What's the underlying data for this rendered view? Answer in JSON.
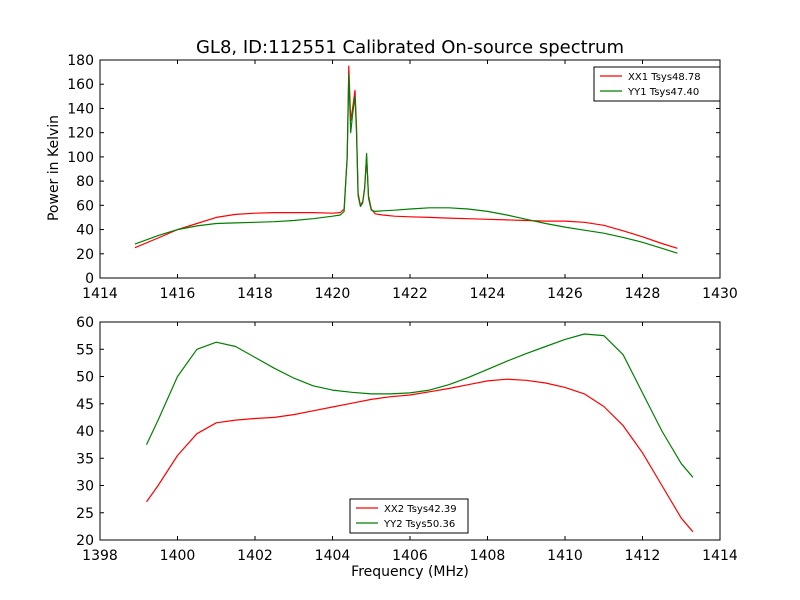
{
  "chart_data": [
    {
      "type": "line",
      "title": "GL8, ID:112551 Calibrated On-source spectrum",
      "xlabel": "",
      "ylabel": "Power in Kelvin",
      "xlim": [
        1414,
        1430
      ],
      "ylim": [
        0,
        180
      ],
      "xticks": [
        1414,
        1416,
        1418,
        1420,
        1422,
        1424,
        1426,
        1428,
        1430
      ],
      "yticks": [
        0,
        20,
        40,
        60,
        80,
        100,
        120,
        140,
        160,
        180
      ],
      "grid": false,
      "legend_position": "upper right",
      "series": [
        {
          "name": "XX1 Tsys48.78",
          "color": "#ff0000",
          "x": [
            1414.9,
            1415.5,
            1416.0,
            1416.5,
            1417.0,
            1417.5,
            1418.0,
            1418.5,
            1419.0,
            1419.5,
            1420.0,
            1420.2,
            1420.3,
            1420.38,
            1420.42,
            1420.47,
            1420.52,
            1420.58,
            1420.62,
            1420.66,
            1420.72,
            1420.78,
            1420.83,
            1420.88,
            1420.93,
            1421.0,
            1421.1,
            1421.3,
            1421.6,
            1422.0,
            1422.5,
            1423.0,
            1423.5,
            1424.0,
            1424.5,
            1425.0,
            1425.5,
            1426.0,
            1426.5,
            1427.0,
            1427.5,
            1428.0,
            1428.5,
            1428.9
          ],
          "y": [
            25,
            33,
            40,
            45,
            50,
            52.5,
            53.5,
            54,
            54,
            54,
            53.5,
            54,
            57,
            100,
            175,
            130,
            140,
            155,
            125,
            70,
            60,
            63,
            75,
            100,
            68,
            57,
            53,
            52,
            51,
            50.5,
            50,
            49.5,
            49,
            48.5,
            48,
            47.5,
            47,
            47,
            46,
            43.5,
            39,
            34,
            28.5,
            24.5
          ]
        },
        {
          "name": "YY1 Tsys47.40",
          "color": "#008000",
          "x": [
            1414.9,
            1415.5,
            1416.0,
            1416.5,
            1417.0,
            1417.5,
            1418.0,
            1418.5,
            1419.0,
            1419.5,
            1420.0,
            1420.2,
            1420.3,
            1420.38,
            1420.42,
            1420.47,
            1420.52,
            1420.58,
            1420.62,
            1420.66,
            1420.72,
            1420.78,
            1420.83,
            1420.88,
            1420.93,
            1421.0,
            1421.1,
            1421.3,
            1421.6,
            1422.0,
            1422.5,
            1423.0,
            1423.5,
            1424.0,
            1424.5,
            1425.0,
            1425.5,
            1426.0,
            1426.5,
            1427.0,
            1427.5,
            1428.0,
            1428.5,
            1428.9
          ],
          "y": [
            28,
            35,
            40,
            43,
            45,
            45.5,
            46,
            46.5,
            47.5,
            49,
            51,
            52,
            55,
            100,
            168,
            120,
            135,
            150,
            120,
            68,
            59,
            62,
            74,
            103,
            66,
            56,
            55,
            55.5,
            56,
            57,
            58,
            58,
            57,
            55,
            52,
            48.5,
            45,
            42,
            39.5,
            37,
            33.5,
            29.5,
            24.5,
            20.5
          ]
        }
      ]
    },
    {
      "type": "line",
      "title": "",
      "xlabel": "Frequency (MHz)",
      "ylabel": "",
      "xlim": [
        1398,
        1414
      ],
      "ylim": [
        20,
        60
      ],
      "xticks": [
        1398,
        1400,
        1402,
        1404,
        1406,
        1408,
        1410,
        1412,
        1414
      ],
      "yticks": [
        20,
        25,
        30,
        35,
        40,
        45,
        50,
        55,
        60
      ],
      "grid": false,
      "legend_position": "lower center",
      "series": [
        {
          "name": "XX2 Tsys42.39",
          "color": "#ff0000",
          "x": [
            1399.2,
            1399.5,
            1400.0,
            1400.5,
            1401.0,
            1401.5,
            1402.0,
            1402.5,
            1403.0,
            1403.5,
            1404.0,
            1404.5,
            1405.0,
            1405.5,
            1406.0,
            1406.5,
            1407.0,
            1407.5,
            1408.0,
            1408.5,
            1409.0,
            1409.5,
            1410.0,
            1410.5,
            1411.0,
            1411.5,
            1412.0,
            1412.5,
            1413.0,
            1413.3
          ],
          "y": [
            27,
            30,
            35.5,
            39.5,
            41.5,
            42,
            42.3,
            42.5,
            43,
            43.7,
            44.4,
            45.1,
            45.8,
            46.3,
            46.6,
            47.2,
            47.8,
            48.5,
            49.2,
            49.5,
            49.3,
            48.8,
            48,
            46.8,
            44.5,
            41,
            36,
            30,
            24,
            21.5
          ]
        },
        {
          "name": "YY2 Tsys50.36",
          "color": "#008000",
          "x": [
            1399.2,
            1399.5,
            1400.0,
            1400.5,
            1401.0,
            1401.5,
            1402.0,
            1402.5,
            1403.0,
            1403.5,
            1404.0,
            1404.5,
            1405.0,
            1405.5,
            1406.0,
            1406.5,
            1407.0,
            1407.5,
            1408.0,
            1408.5,
            1409.0,
            1409.5,
            1410.0,
            1410.5,
            1411.0,
            1411.5,
            1412.0,
            1412.5,
            1413.0,
            1413.3
          ],
          "y": [
            37.5,
            42,
            50,
            55,
            56.3,
            55.5,
            53.5,
            51.5,
            49.7,
            48.3,
            47.5,
            47.1,
            46.8,
            46.8,
            47,
            47.5,
            48.5,
            49.8,
            51.3,
            52.8,
            54.2,
            55.5,
            56.8,
            57.8,
            57.5,
            54,
            47,
            40,
            34,
            31.5
          ]
        }
      ]
    }
  ]
}
